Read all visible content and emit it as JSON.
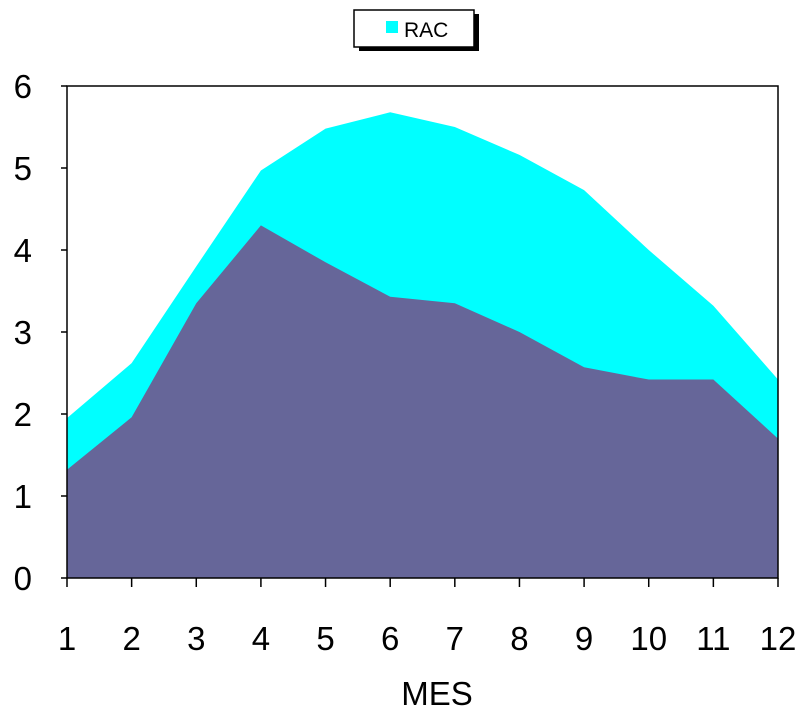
{
  "chart_data": {
    "type": "area",
    "title": "",
    "xlabel": "MES",
    "ylabel": "",
    "categories": [
      "1",
      "2",
      "3",
      "4",
      "5",
      "6",
      "7",
      "8",
      "9",
      "10",
      "11",
      "12"
    ],
    "ylim": [
      0,
      6
    ],
    "yticks": [
      0,
      1,
      2,
      3,
      4,
      5,
      6
    ],
    "grid": false,
    "legend_position": "top",
    "series": [
      {
        "name": "RAC",
        "color": "#00FFFF",
        "values": [
          1.95,
          2.62,
          3.8,
          4.97,
          5.48,
          5.68,
          5.5,
          5.16,
          4.73,
          4.0,
          3.32,
          2.42
        ]
      },
      {
        "name": "",
        "color": "#666699",
        "values": [
          1.32,
          1.96,
          3.35,
          4.3,
          3.85,
          3.43,
          3.35,
          3.0,
          2.57,
          2.42,
          2.42,
          1.7
        ]
      }
    ]
  }
}
